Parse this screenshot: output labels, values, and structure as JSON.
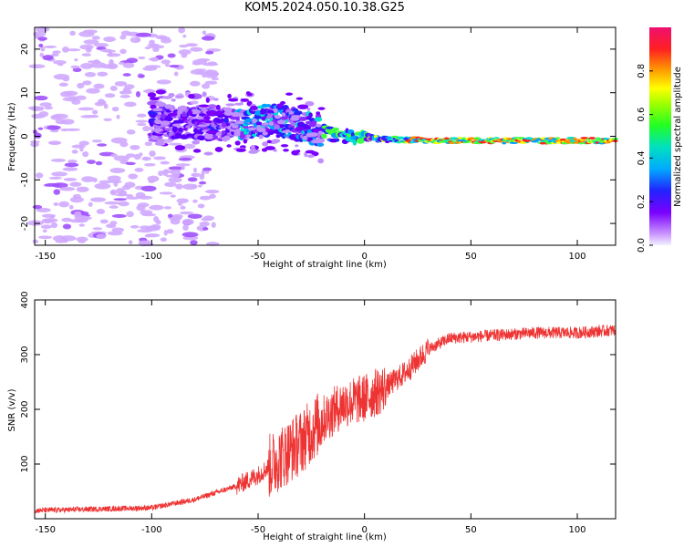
{
  "title": "KOM5.2024.050.10.38.G25",
  "chart_data": [
    {
      "type": "heatmap",
      "xlabel": "Height of straight line (km)",
      "ylabel": "Frequency (Hz)",
      "xlim": [
        -155,
        118
      ],
      "ylim": [
        -25,
        25
      ],
      "xticks": [
        -150,
        -100,
        -50,
        0,
        50,
        100
      ],
      "yticks": [
        -20,
        -10,
        0,
        10,
        20
      ],
      "colorbar": {
        "label": "Normalized spectral amplitude",
        "range": [
          0,
          1
        ],
        "ticks": [
          "0.0",
          "0.2",
          "0.4",
          "0.6",
          "0.8"
        ]
      },
      "ridge": {
        "description_points_x": [
          -100,
          -80,
          -60,
          -45,
          -35,
          -20,
          -10,
          0,
          10,
          30,
          60,
          90,
          118
        ],
        "description_points_y": [
          3.5,
          3.0,
          2.5,
          4.0,
          3.0,
          1.0,
          0.0,
          0.0,
          -0.7,
          -0.9,
          -1.0,
          -1.0,
          -1.0
        ]
      }
    },
    {
      "type": "line",
      "xlabel": "Height of straight line (km)",
      "ylabel": "SNR (v/v)",
      "xlim": [
        -155,
        118
      ],
      "ylim": [
        0,
        400
      ],
      "xticks": [
        -150,
        -100,
        -50,
        0,
        50,
        100
      ],
      "yticks": [
        100,
        200,
        300,
        400
      ],
      "color": "#ee3333",
      "trend_x": [
        -155,
        -100,
        -80,
        -60,
        -50,
        -40,
        -30,
        -20,
        -10,
        0,
        10,
        20,
        30,
        40,
        60,
        80,
        100,
        118
      ],
      "trend_y": [
        15,
        20,
        35,
        60,
        80,
        110,
        140,
        180,
        210,
        220,
        240,
        270,
        310,
        330,
        335,
        340,
        340,
        345
      ]
    }
  ]
}
